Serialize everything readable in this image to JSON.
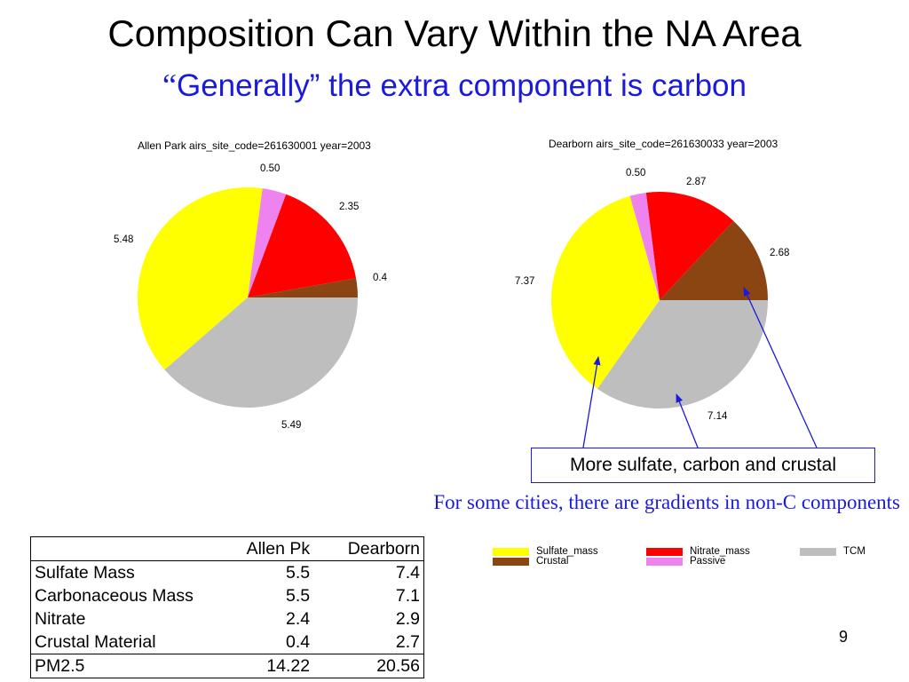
{
  "slide": {
    "title": "Composition Can Vary Within the NA Area",
    "subtitle_quote": "“",
    "subtitle": "Generally” the extra component is carbon",
    "callout": "More sulfate, carbon and crustal",
    "note": "For some cities, there are gradients in non-C components",
    "page_number": "9"
  },
  "colors": {
    "Sulfate_mass": "#ffff00",
    "Nitrate_mass": "#ff0000",
    "TCM": "#bebebe",
    "Crustal": "#8b4513",
    "Passive": "#ee82ee",
    "accent_blue": "#1a1adf"
  },
  "chart_data": [
    {
      "type": "pie",
      "title": "Allen Park airs_site_code=261630001 year=2003",
      "slices": [
        {
          "name": "Crustal",
          "value": 0.4,
          "label": "0.4"
        },
        {
          "name": "Nitrate_mass",
          "value": 2.35,
          "label": "2.35"
        },
        {
          "name": "Passive",
          "value": 0.5,
          "label": "0.50"
        },
        {
          "name": "Sulfate_mass",
          "value": 5.48,
          "label": "5.48"
        },
        {
          "name": "TCM",
          "value": 5.49,
          "label": "5.49"
        }
      ]
    },
    {
      "type": "pie",
      "title": "Dearborn airs_site_code=261630033 year=2003",
      "slices": [
        {
          "name": "Crustal",
          "value": 2.68,
          "label": "2.68"
        },
        {
          "name": "Nitrate_mass",
          "value": 2.87,
          "label": "2.87"
        },
        {
          "name": "Passive",
          "value": 0.5,
          "label": "0.50"
        },
        {
          "name": "Sulfate_mass",
          "value": 7.37,
          "label": "7.37"
        },
        {
          "name": "TCM",
          "value": 7.14,
          "label": "7.14"
        }
      ]
    }
  ],
  "legend": [
    {
      "name": "Sulfate_mass"
    },
    {
      "name": "Nitrate_mass"
    },
    {
      "name": "TCM"
    },
    {
      "name": "Crustal"
    },
    {
      "name": "Passive"
    }
  ],
  "table": {
    "headers": [
      "",
      "Allen Pk",
      "Dearborn"
    ],
    "rows": [
      [
        "Sulfate Mass",
        "5.5",
        "7.4"
      ],
      [
        "Carbonaceous Mass",
        "5.5",
        "7.1"
      ],
      [
        "Nitrate",
        "2.4",
        "2.9"
      ],
      [
        "Crustal Material",
        "0.4",
        "2.7"
      ]
    ],
    "total": [
      "PM2.5",
      "14.22",
      "20.56"
    ]
  }
}
